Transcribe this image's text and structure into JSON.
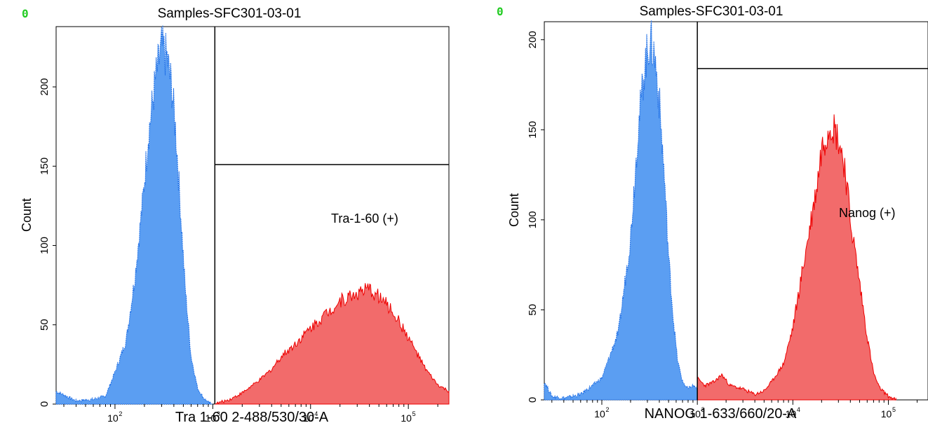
{
  "colors": {
    "negative": "#5b9ef2",
    "negative_edge": "#1f6fe6",
    "positive": "#f26b6b",
    "positive_edge": "#ee0000",
    "corner_marker": "#22cc22"
  },
  "chart_data": [
    {
      "type": "area",
      "corner_marker": "0",
      "title": "Samples-SFC301-03-01",
      "xlabel": "Tra 1-60 2-488/530/30-A",
      "ylabel": "Count",
      "x_scale": "log",
      "xlim": [
        25,
        260000
      ],
      "ylim": [
        0,
        238
      ],
      "yticks": [
        "0",
        "50",
        "100",
        "150",
        "200"
      ],
      "xticks": [
        {
          "base": "10",
          "exp": "2",
          "value": 100
        },
        {
          "base": "10",
          "exp": "3",
          "value": 1000
        },
        {
          "base": "10",
          "exp": "4",
          "value": 10000
        },
        {
          "base": "10",
          "exp": "5",
          "value": 100000
        }
      ],
      "gate": {
        "label": "Tra-1-60 (+)",
        "x_from": 1050,
        "x_to": 260000,
        "y_level": 151
      },
      "series": [
        {
          "role": "negative",
          "x": [
            25,
            40,
            60,
            80,
            100,
            130,
            160,
            190,
            220,
            260,
            300,
            340,
            380,
            420,
            460,
            520,
            600,
            700,
            800,
            900,
            1000
          ],
          "y": [
            8,
            2,
            3,
            5,
            20,
            40,
            80,
            125,
            170,
            205,
            225,
            218,
            200,
            170,
            130,
            75,
            30,
            10,
            4,
            1,
            0
          ]
        },
        {
          "role": "positive",
          "x": [
            1050,
            1500,
            2000,
            3000,
            4000,
            5000,
            7000,
            10000,
            15000,
            20000,
            30000,
            40000,
            50000,
            70000,
            100000,
            150000,
            200000,
            260000
          ],
          "y": [
            0,
            3,
            7,
            15,
            22,
            30,
            38,
            48,
            58,
            65,
            70,
            72,
            68,
            58,
            42,
            22,
            12,
            8
          ]
        }
      ]
    },
    {
      "type": "area",
      "corner_marker": "0",
      "title": "Samples-SFC301-03-01",
      "xlabel": "NANOG 1-633/660/20-A",
      "ylabel": "Count",
      "x_scale": "log",
      "xlim": [
        25,
        260000
      ],
      "ylim": [
        0,
        210
      ],
      "yticks": [
        "0",
        "50",
        "100",
        "150",
        "200"
      ],
      "xticks": [
        {
          "base": "10",
          "exp": "2",
          "value": 100
        },
        {
          "base": "10",
          "exp": "3",
          "value": 1000
        },
        {
          "base": "10",
          "exp": "4",
          "value": 10000
        },
        {
          "base": "10",
          "exp": "5",
          "value": 100000
        }
      ],
      "gate": {
        "label": "Nanog (+)",
        "x_from": 1000,
        "x_to": 260000,
        "y_level": 184
      },
      "series": [
        {
          "role": "negative",
          "x": [
            25,
            30,
            40,
            60,
            100,
            150,
            200,
            240,
            280,
            320,
            360,
            400,
            450,
            500,
            560,
            620,
            700,
            800,
            900,
            1000
          ],
          "y": [
            10,
            2,
            1,
            3,
            12,
            38,
            90,
            150,
            185,
            200,
            190,
            165,
            125,
            80,
            45,
            22,
            10,
            6,
            8,
            6
          ]
        },
        {
          "role": "positive",
          "x": [
            1000,
            1200,
            1500,
            1800,
            2200,
            3000,
            4000,
            5000,
            6000,
            8000,
            10000,
            12000,
            15000,
            18000,
            20000,
            25000,
            30000,
            35000,
            40000,
            50000,
            60000,
            70000,
            80000,
            100000,
            120000
          ],
          "y": [
            12,
            8,
            10,
            14,
            8,
            6,
            3,
            5,
            10,
            20,
            40,
            65,
            95,
            120,
            140,
            155,
            145,
            130,
            100,
            65,
            35,
            15,
            7,
            2,
            0
          ]
        }
      ]
    }
  ]
}
